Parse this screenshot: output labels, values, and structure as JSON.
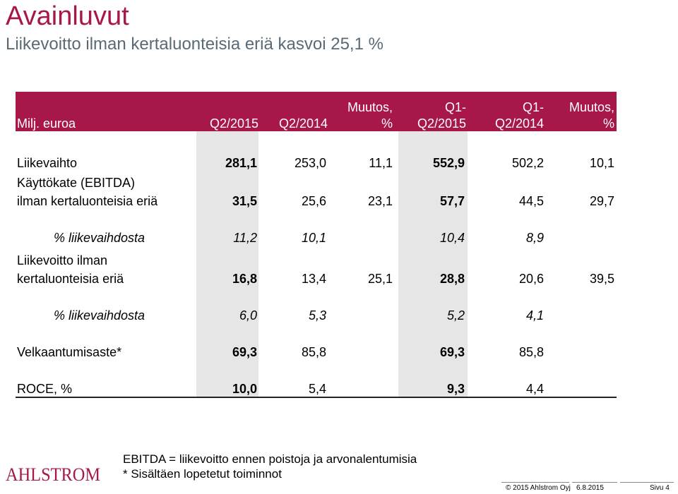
{
  "title": "Avainluvut",
  "subtitle": "Liikevoitto ilman kertaluonteisia eriä kasvoi 25,1 %",
  "colors": {
    "accent": "#a8174a",
    "shade": "#e6e6e6"
  },
  "table": {
    "header": {
      "label": "Milj. euroa",
      "col1": "Q2/2015",
      "col2": "Q2/2014",
      "col3_line1": "Muutos,",
      "col3_line2": "%",
      "col4_line1": "Q1-",
      "col4_line2": "Q2/2015",
      "col5_line1": "Q1-",
      "col5_line2": "Q2/2014",
      "col6_line1": "Muutos,",
      "col6_line2": "%"
    },
    "rows": [
      {
        "label": "Liikevaihto",
        "c1": "281,1",
        "c2": "253,0",
        "c3": "11,1",
        "c4": "552,9",
        "c5": "502,2",
        "c6": "10,1"
      },
      {
        "label_line1": "Käyttökate (EBITDA)",
        "label_line2": "ilman kertaluonteisia eriä",
        "c1": "31,5",
        "c2": "25,6",
        "c3": "23,1",
        "c4": "57,7",
        "c5": "44,5",
        "c6": "29,7"
      },
      {
        "label": "% liikevaihdosta",
        "c1": "11,2",
        "c2": "10,1",
        "c4": "10,4",
        "c5": "8,9"
      },
      {
        "label_line1": "Liikevoitto ilman",
        "label_line2": "kertaluonteisia eriä",
        "c1": "16,8",
        "c2": "13,4",
        "c3": "25,1",
        "c4": "28,8",
        "c5": "20,6",
        "c6": "39,5"
      },
      {
        "label": "% liikevaihdosta",
        "c1": "6,0",
        "c2": "5,3",
        "c4": "5,2",
        "c5": "4,1"
      },
      {
        "label": "Velkaantumisaste*",
        "c1": "69,3",
        "c2": "85,8",
        "c4": "69,3",
        "c5": "85,8"
      },
      {
        "label": "ROCE, %",
        "c1": "10,0",
        "c2": "5,4",
        "c4": "9,3",
        "c5": "4,4"
      }
    ]
  },
  "footnotes": {
    "ebitda": "EBITDA = liikevoitto ennen poistoja ja arvonalentumisia",
    "discontinued": "* Sisältäen lopetetut toiminnot"
  },
  "footer": {
    "logo_text": "AHLSTROM",
    "copyright": "© 2015 Ahlstrom Oyj",
    "date": "6.8.2015",
    "page": "Sivu 4"
  }
}
